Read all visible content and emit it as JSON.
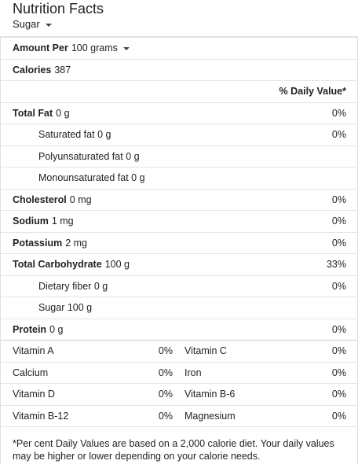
{
  "header": {
    "title": "Nutrition Facts",
    "food": "Sugar"
  },
  "serving": {
    "label": "Amount Per",
    "value": "100 grams"
  },
  "calories": {
    "label": "Calories",
    "value": "387"
  },
  "dv_header": "% Daily Value*",
  "nutrients": [
    {
      "label": "Total Fat",
      "amount": "0 g",
      "dv": "0%",
      "sub": [
        {
          "label": "Saturated fat",
          "amount": "0 g",
          "dv": "0%"
        },
        {
          "label": "Polyunsaturated fat",
          "amount": "0 g"
        },
        {
          "label": "Monounsaturated fat",
          "amount": "0 g"
        }
      ]
    },
    {
      "label": "Cholesterol",
      "amount": "0 mg",
      "dv": "0%"
    },
    {
      "label": "Sodium",
      "amount": "1 mg",
      "dv": "0%"
    },
    {
      "label": "Potassium",
      "amount": "2 mg",
      "dv": "0%"
    },
    {
      "label": "Total Carbohydrate",
      "amount": "100 g",
      "dv": "33%",
      "sub": [
        {
          "label": "Dietary fiber",
          "amount": "0 g",
          "dv": "0%"
        },
        {
          "label": "Sugar",
          "amount": "100 g"
        }
      ]
    },
    {
      "label": "Protein",
      "amount": "0 g",
      "dv": "0%"
    }
  ],
  "vitamins": [
    [
      {
        "name": "Vitamin A",
        "dv": "0%"
      },
      {
        "name": "Vitamin C",
        "dv": "0%"
      }
    ],
    [
      {
        "name": "Calcium",
        "dv": "0%"
      },
      {
        "name": "Iron",
        "dv": "0%"
      }
    ],
    [
      {
        "name": "Vitamin D",
        "dv": "0%"
      },
      {
        "name": "Vitamin B-6",
        "dv": "0%"
      }
    ],
    [
      {
        "name": "Vitamin B-12",
        "dv": "0%"
      },
      {
        "name": "Magnesium",
        "dv": "0%"
      }
    ]
  ],
  "footnote": "*Per cent Daily Values are based on a 2,000 calorie diet. Your daily values may be higher or lower depending on your calorie needs."
}
